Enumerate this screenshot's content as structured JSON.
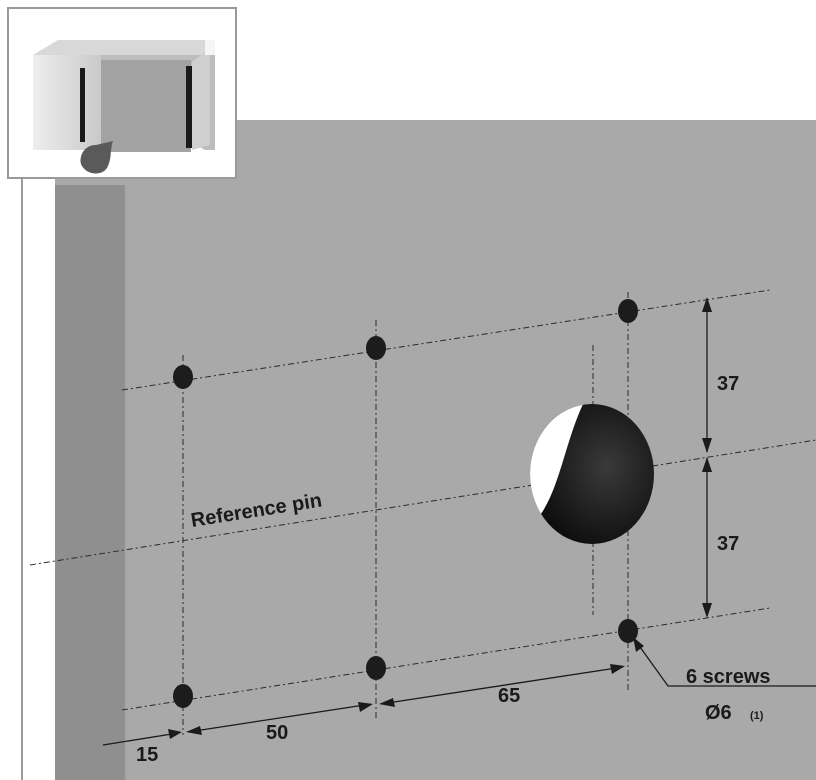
{
  "labels": {
    "reference": "Reference pin",
    "dim_37_top": "37",
    "dim_37_bottom": "37",
    "dim_65": "65",
    "dim_50": "50",
    "dim_15": "15",
    "screws": "6 screws",
    "screw_diameter": "Ø6",
    "footnote_ref": "(1)"
  },
  "colors": {
    "panel": "#a9a9a9",
    "panel_edge": "#8e8e8e",
    "hole_dark": "#1c1c1c",
    "frame": "#9a9a9a"
  }
}
